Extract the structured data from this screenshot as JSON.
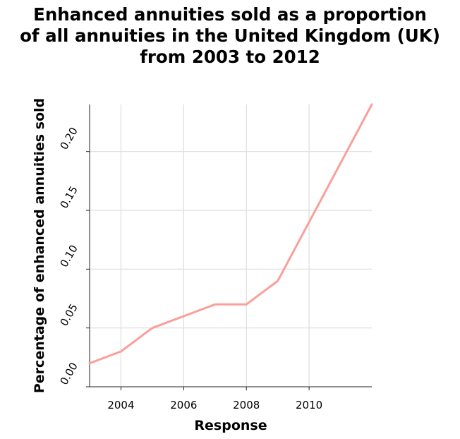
{
  "chart_data": {
    "type": "line",
    "title_lines": [
      "Enhanced annuities sold as a proportion",
      "of all annuities in the United Kingdom (UK)",
      "from 2003 to 2012"
    ],
    "xlabel": "Response",
    "ylabel": "Percentage of enhanced annuities sold",
    "x": [
      2003,
      2004,
      2005,
      2006,
      2007,
      2008,
      2009,
      2010,
      2011,
      2012
    ],
    "series": [
      {
        "values": [
          0.02,
          0.03,
          0.05,
          0.06,
          0.07,
          0.07,
          0.09,
          0.14,
          0.19,
          0.24
        ]
      }
    ],
    "xlim": [
      2003,
      2012
    ],
    "ylim": [
      0.0,
      0.24
    ],
    "xticks": [
      2004,
      2006,
      2008,
      2010
    ],
    "xtick_labels": [
      "2004",
      "2006",
      "2008",
      "2010"
    ],
    "yticks": [
      0.0,
      0.05,
      0.1,
      0.15,
      0.2
    ],
    "ytick_labels": [
      "0.00",
      "0.05",
      "0.10",
      "0.15",
      "0.20"
    ],
    "grid": true,
    "line_color": "#fa9f9a",
    "grid_color": "#dddddd"
  }
}
